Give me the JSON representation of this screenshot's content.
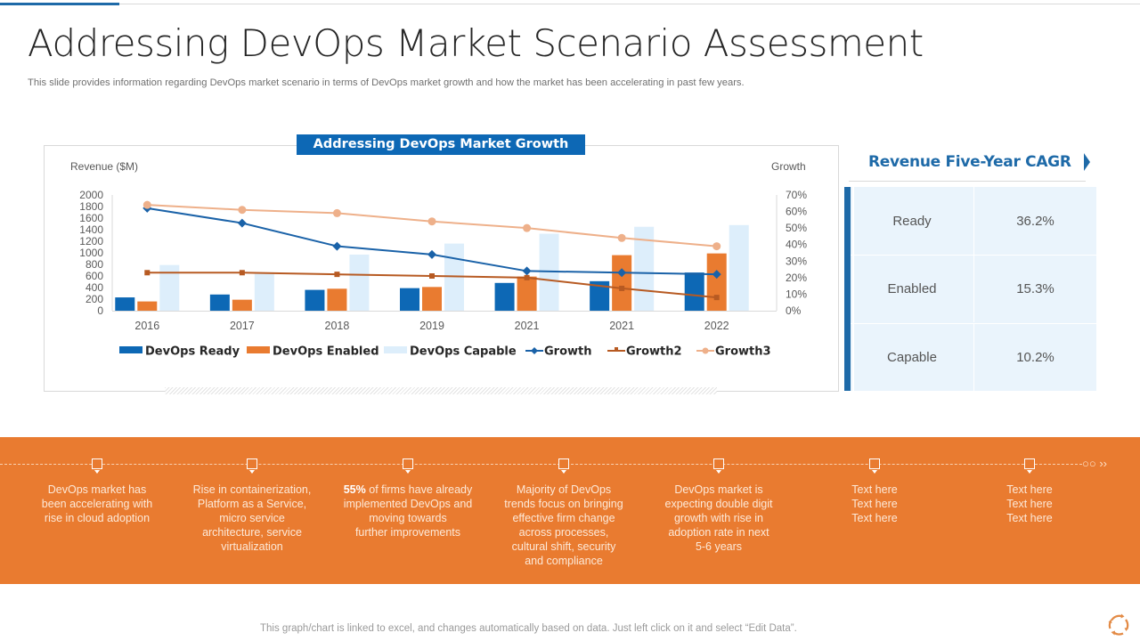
{
  "header": {
    "title": "Addressing DevOps Market Scenario Assessment",
    "subtitle": "This slide provides information regarding DevOps market scenario in terms of DevOps market growth and how the market has been accelerating in past few years."
  },
  "colors": {
    "ready": "#0d68b5",
    "enabled": "#e97b30",
    "capable": "#ddeefb",
    "growth": "#1a62a8",
    "growth2": "#b75a22",
    "growth3": "#eeb08a",
    "accent": "#1e6aa8",
    "band": "#e97b30"
  },
  "chart_data": {
    "type": "bar",
    "title": "Addressing DevOps Market Growth",
    "ylabel": "Revenue  ($M)",
    "y2label": "Growth",
    "categories": [
      "2016",
      "2017",
      "2018",
      "2019",
      "2021",
      "2021",
      "2022"
    ],
    "ylim": [
      0,
      2000
    ],
    "yticks": [
      "2000",
      "1800",
      "1600",
      "1400",
      "1200",
      "1000",
      "800",
      "600",
      "400",
      "200",
      "0"
    ],
    "y2lim": [
      0,
      70
    ],
    "y2ticks": [
      "70%",
      "60%",
      "50%",
      "40%",
      "30%",
      "20%",
      "10%",
      "0%"
    ],
    "grid": false,
    "legend_position": "bottom",
    "bar_series": [
      {
        "name": "DevOps Ready",
        "values": [
          230,
          280,
          360,
          390,
          480,
          510,
          660
        ]
      },
      {
        "name": "DevOps Enabled",
        "values": [
          160,
          190,
          380,
          410,
          590,
          960,
          990
        ]
      },
      {
        "name": "DevOps Capable",
        "values": [
          790,
          650,
          970,
          1160,
          1330,
          1450,
          1480
        ]
      }
    ],
    "line_series": [
      {
        "name": "Growth",
        "marker": "diamond",
        "values": [
          62,
          53,
          39,
          34,
          24,
          23,
          22
        ]
      },
      {
        "name": "Growth2",
        "marker": "square",
        "values": [
          23,
          23,
          22,
          21,
          20,
          13.5,
          8
        ]
      },
      {
        "name": "Growth3",
        "marker": "circle",
        "values": [
          64,
          61,
          59,
          54,
          50,
          44,
          39
        ]
      }
    ]
  },
  "cagr": {
    "title": "Revenue Five-Year CAGR",
    "rows": [
      {
        "label": "Ready",
        "value": "36.2%"
      },
      {
        "label": "Enabled",
        "value": "15.3%"
      },
      {
        "label": "Capable",
        "value": "10.2%"
      }
    ]
  },
  "timeline": [
    {
      "lines": [
        "DevOps  market has",
        "been accelerating with",
        "rise in cloud adoption"
      ]
    },
    {
      "lines": [
        "Rise in containerization,",
        "Platform as a Service,",
        "micro service",
        "architecture, service",
        "virtualization"
      ]
    },
    {
      "bold": "55%",
      "lines": [
        " of firms have  already",
        "implemented DevOps and",
        "moving towards",
        "further improvements"
      ]
    },
    {
      "lines": [
        "Majority of DevOps",
        "trends focus on bringing",
        "effective firm change",
        "across processes,",
        "cultural shift, security",
        "and compliance"
      ]
    },
    {
      "lines": [
        "DevOps  market is",
        "expecting double digit",
        "growth with rise in",
        "adoption rate in next",
        "5-6 years"
      ]
    },
    {
      "lines": [
        "Text here",
        "Text here",
        "Text here"
      ]
    },
    {
      "lines": [
        "Text here",
        "Text here",
        "Text here"
      ]
    }
  ],
  "footer": {
    "note": "This graph/chart is linked to excel, and changes automatically based on data. Just left click on it and select “Edit Data”."
  }
}
